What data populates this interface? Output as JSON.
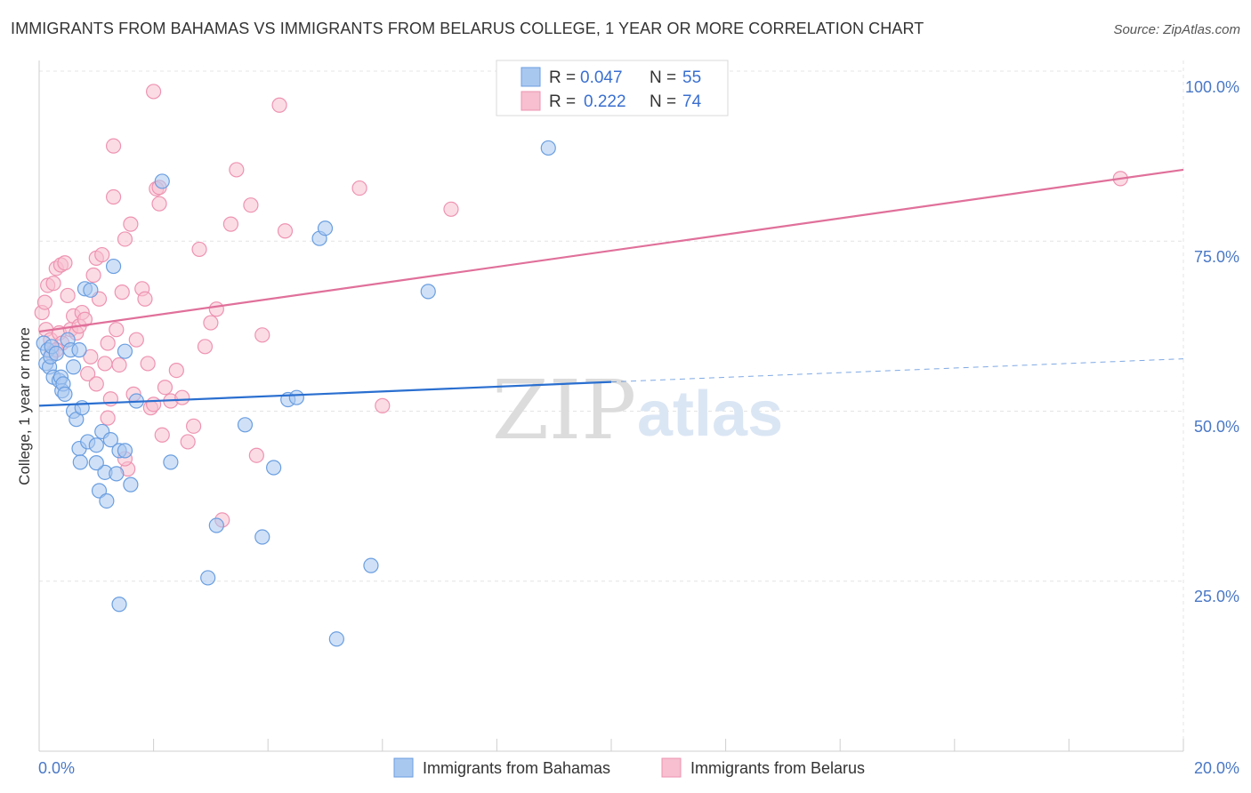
{
  "title": "IMMIGRANTS FROM BAHAMAS VS IMMIGRANTS FROM BELARUS COLLEGE, 1 YEAR OR MORE CORRELATION CHART",
  "source": "Source: ZipAtlas.com",
  "watermark": {
    "zip": "ZIP",
    "atlas": "atlas"
  },
  "colors": {
    "bahamas_fill": "#a9c8f0",
    "bahamas_stroke": "#6a9ee0",
    "bahamas_line": "#2a6fd0",
    "belarus_fill": "#f7bfd0",
    "belarus_stroke": "#ee93b1",
    "belarus_line": "#e0709a",
    "tick_text": "#4a78c6"
  },
  "legend_top": {
    "rows": [
      {
        "r_label": "R =",
        "r_value": "0.047",
        "n_label": "N =",
        "n_value": "55"
      },
      {
        "r_label": "R =",
        "r_value": "0.222",
        "n_label": "N =",
        "n_value": "74"
      }
    ]
  },
  "legend_bottom": {
    "items": [
      {
        "label": "Immigrants from Bahamas"
      },
      {
        "label": "Immigrants from Belarus"
      }
    ]
  },
  "chart_data": {
    "type": "scatter",
    "title": "IMMIGRANTS FROM BAHAMAS VS IMMIGRANTS FROM BELARUS COLLEGE, 1 YEAR OR MORE CORRELATION CHART",
    "xlabel": "",
    "ylabel": "College, 1 year or more",
    "xlim": [
      0,
      20
    ],
    "ylim": [
      0,
      100
    ],
    "x_tick_labels": [
      "0.0%",
      "20.0%"
    ],
    "y_ticks": [
      25,
      50,
      75,
      100
    ],
    "y_tick_labels": [
      "25.0%",
      "50.0%",
      "75.0%",
      "100.0%"
    ],
    "grid": true,
    "series": [
      {
        "name": "Immigrants from Bahamas",
        "r": 0.047,
        "n": 55,
        "trend": {
          "x0": 0,
          "y0": 50.8,
          "x1": 10,
          "y1": 54.3,
          "dashed_to_x": 20,
          "dashed_to_y": 57.7
        },
        "points": [
          [
            0.08,
            60.0
          ],
          [
            0.12,
            57.0
          ],
          [
            0.15,
            59.0
          ],
          [
            0.18,
            56.5
          ],
          [
            0.2,
            58.0
          ],
          [
            0.22,
            59.5
          ],
          [
            0.25,
            55.0
          ],
          [
            0.3,
            58.5
          ],
          [
            0.35,
            54.5
          ],
          [
            0.38,
            55.0
          ],
          [
            0.4,
            53.0
          ],
          [
            0.42,
            54.0
          ],
          [
            0.45,
            52.5
          ],
          [
            0.5,
            60.5
          ],
          [
            0.55,
            59.0
          ],
          [
            0.6,
            56.5
          ],
          [
            0.6,
            50.0
          ],
          [
            0.65,
            48.8
          ],
          [
            0.7,
            59.0
          ],
          [
            0.75,
            50.5
          ],
          [
            0.7,
            44.5
          ],
          [
            0.72,
            42.5
          ],
          [
            0.8,
            68.0
          ],
          [
            0.85,
            45.5
          ],
          [
            0.9,
            67.8
          ],
          [
            1.0,
            45.0
          ],
          [
            1.05,
            38.3
          ],
          [
            1.1,
            47.0
          ],
          [
            1.15,
            41.0
          ],
          [
            1.18,
            36.8
          ],
          [
            1.25,
            45.8
          ],
          [
            1.3,
            71.3
          ],
          [
            1.35,
            40.8
          ],
          [
            1.4,
            44.2
          ],
          [
            1.5,
            44.2
          ],
          [
            1.5,
            58.8
          ],
          [
            1.6,
            39.2
          ],
          [
            1.7,
            51.5
          ],
          [
            2.15,
            83.8
          ],
          [
            2.3,
            42.5
          ],
          [
            2.95,
            25.5
          ],
          [
            3.1,
            33.2
          ],
          [
            3.6,
            48.0
          ],
          [
            3.9,
            31.5
          ],
          [
            4.1,
            41.7
          ],
          [
            4.35,
            51.7
          ],
          [
            4.5,
            52.0
          ],
          [
            4.9,
            75.4
          ],
          [
            5.0,
            76.9
          ],
          [
            5.2,
            16.5
          ],
          [
            5.8,
            27.3
          ],
          [
            6.8,
            67.6
          ],
          [
            8.9,
            88.7
          ],
          [
            1.4,
            21.6
          ],
          [
            1.0,
            42.4
          ]
        ]
      },
      {
        "name": "Immigrants from Belarus",
        "r": 0.222,
        "n": 74,
        "trend": {
          "x0": 0,
          "y0": 61.7,
          "x1": 20,
          "y1": 85.5
        },
        "points": [
          [
            0.05,
            64.5
          ],
          [
            0.1,
            66.0
          ],
          [
            0.12,
            62.0
          ],
          [
            0.15,
            68.5
          ],
          [
            0.2,
            60.5
          ],
          [
            0.22,
            58.5
          ],
          [
            0.25,
            68.8
          ],
          [
            0.3,
            71.0
          ],
          [
            0.35,
            61.5
          ],
          [
            0.38,
            71.5
          ],
          [
            0.4,
            60.0
          ],
          [
            0.45,
            71.8
          ],
          [
            0.5,
            67.0
          ],
          [
            0.55,
            62.0
          ],
          [
            0.6,
            64.0
          ],
          [
            0.65,
            61.5
          ],
          [
            0.7,
            62.5
          ],
          [
            0.75,
            64.5
          ],
          [
            0.8,
            63.5
          ],
          [
            0.85,
            55.5
          ],
          [
            0.9,
            58.0
          ],
          [
            0.95,
            70.0
          ],
          [
            1.0,
            72.5
          ],
          [
            1.05,
            66.5
          ],
          [
            1.1,
            73.0
          ],
          [
            1.15,
            57.0
          ],
          [
            1.2,
            60.0
          ],
          [
            1.25,
            51.8
          ],
          [
            1.3,
            81.5
          ],
          [
            1.35,
            62.0
          ],
          [
            1.4,
            56.8
          ],
          [
            1.45,
            67.5
          ],
          [
            1.5,
            75.3
          ],
          [
            1.55,
            41.5
          ],
          [
            1.6,
            77.5
          ],
          [
            1.65,
            52.5
          ],
          [
            1.7,
            60.5
          ],
          [
            1.8,
            68.0
          ],
          [
            1.85,
            66.5
          ],
          [
            1.9,
            57.0
          ],
          [
            1.95,
            50.5
          ],
          [
            2.0,
            51.0
          ],
          [
            2.05,
            82.7
          ],
          [
            2.1,
            80.5
          ],
          [
            2.15,
            46.5
          ],
          [
            2.2,
            53.5
          ],
          [
            2.3,
            51.5
          ],
          [
            2.4,
            56.0
          ],
          [
            2.5,
            52.0
          ],
          [
            2.6,
            45.5
          ],
          [
            2.7,
            47.8
          ],
          [
            2.8,
            73.8
          ],
          [
            2.9,
            59.5
          ],
          [
            3.0,
            63.0
          ],
          [
            3.1,
            65.0
          ],
          [
            3.2,
            34.0
          ],
          [
            3.35,
            77.5
          ],
          [
            3.45,
            85.5
          ],
          [
            3.7,
            80.3
          ],
          [
            3.8,
            43.5
          ],
          [
            3.9,
            61.2
          ],
          [
            4.3,
            76.5
          ],
          [
            4.2,
            95.0
          ],
          [
            2.0,
            97.0
          ],
          [
            1.3,
            89.0
          ],
          [
            5.6,
            82.8
          ],
          [
            6.0,
            50.8
          ],
          [
            7.2,
            79.7
          ],
          [
            18.9,
            84.2
          ],
          [
            1.0,
            54.0
          ],
          [
            1.5,
            43.0
          ],
          [
            0.3,
            59.0
          ],
          [
            1.2,
            49.0
          ],
          [
            2.1,
            82.9
          ]
        ]
      }
    ]
  }
}
